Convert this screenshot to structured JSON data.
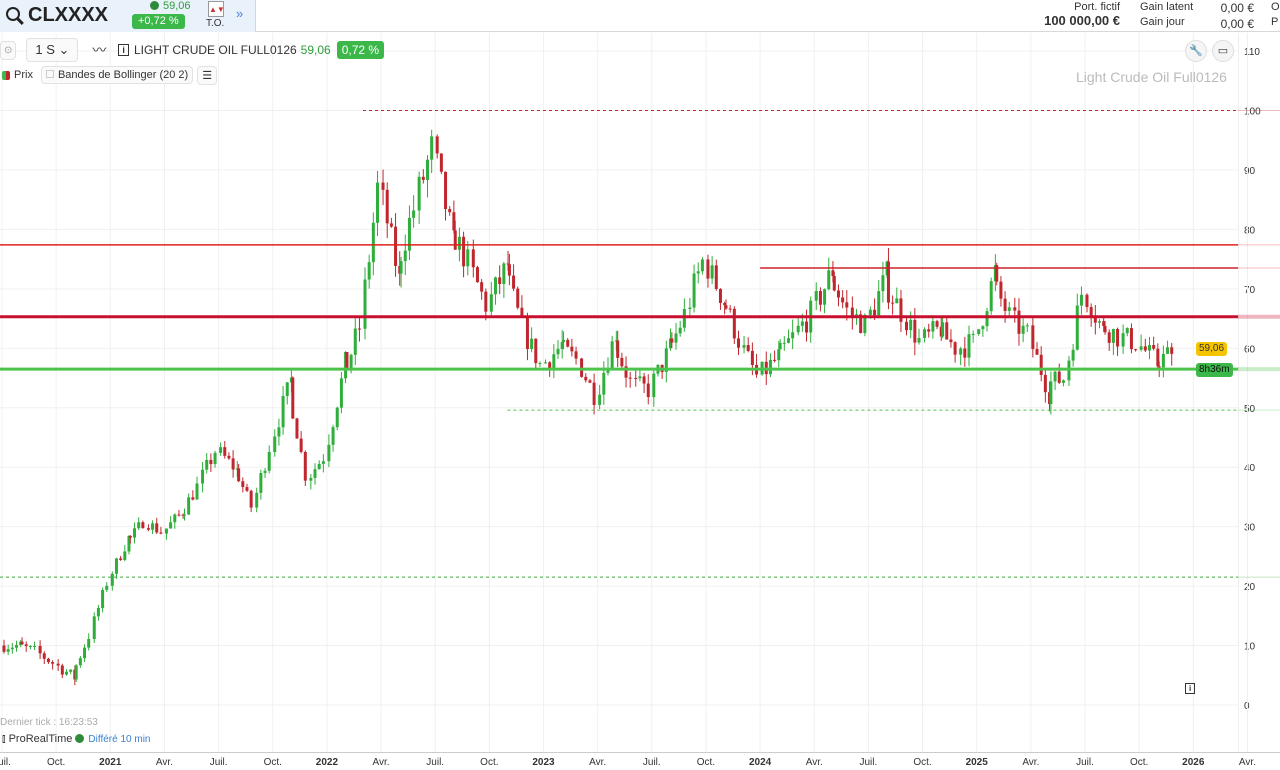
{
  "header": {
    "symbol": "CLXXXX",
    "price": "59,06",
    "change": "+0,72 %",
    "to_label": "T.O.",
    "portfolio_label": "Port. fictif",
    "portfolio_value": "100 000,00 €",
    "gain_latent_label": "Gain latent",
    "gain_latent": "0,00 €",
    "gain_jour_label": "Gain jour",
    "gain_jour": "0,00 €",
    "cut1": "O",
    "cut2": "P"
  },
  "toolbar": {
    "period": "1 S",
    "instrument": "LIGHT CRUDE OIL FULL0126",
    "price": "59,06",
    "change": "0,72 %"
  },
  "legend": {
    "price": "Prix",
    "indicator": "Bandes de Bollinger (20 2)"
  },
  "watermark": "Light Crude Oil Full0126",
  "footer": {
    "last_tick": "Dernier tick : 16:23:53",
    "brand": "ProRealTime",
    "delay": "Différé 10 min"
  },
  "price_tag": "59,06",
  "timer_tag": "8h36m",
  "colors": {
    "up": "#2fae3c",
    "down": "#c0262d",
    "accent_green": "#3cb84a",
    "tag_yellow": "#f5c400"
  },
  "chart_data": {
    "type": "candlestick",
    "timeframe": "weekly",
    "ylim": [
      0,
      110
    ],
    "yticks": [
      0,
      10,
      20,
      30,
      40,
      50,
      60,
      70,
      80,
      90,
      100,
      110
    ],
    "xticks": [
      "Juil.",
      "Oct.",
      "2021",
      "Avr.",
      "Juil.",
      "Oct.",
      "2022",
      "Avr.",
      "Juil.",
      "Oct.",
      "2023",
      "Avr.",
      "Juil.",
      "Oct.",
      "2024",
      "Avr.",
      "Juil.",
      "Oct.",
      "2025",
      "Avr.",
      "Juil.",
      "Oct.",
      "2026",
      "Avr."
    ],
    "grid": true,
    "monthly_close": [
      [
        "2020-07",
        10
      ],
      [
        "2020-08",
        9
      ],
      [
        "2020-09",
        7
      ],
      [
        "2020-10",
        5
      ],
      [
        "2020-11",
        12
      ],
      [
        "2020-12",
        21
      ],
      [
        "2021-01",
        27
      ],
      [
        "2021-02",
        31
      ],
      [
        "2021-03",
        29
      ],
      [
        "2021-04",
        32
      ],
      [
        "2021-05",
        37
      ],
      [
        "2021-06",
        43
      ],
      [
        "2021-07",
        40
      ],
      [
        "2021-08",
        33
      ],
      [
        "2021-09",
        44
      ],
      [
        "2021-10",
        53
      ],
      [
        "2021-11",
        38
      ],
      [
        "2021-12",
        42
      ],
      [
        "2022-01",
        55
      ],
      [
        "2022-02",
        64
      ],
      [
        "2022-03",
        88
      ],
      [
        "2022-04",
        74
      ],
      [
        "2022-05",
        84
      ],
      [
        "2022-06",
        94
      ],
      [
        "2022-07",
        80
      ],
      [
        "2022-08",
        74
      ],
      [
        "2022-09",
        67
      ],
      [
        "2022-10",
        73
      ],
      [
        "2022-11",
        63
      ],
      [
        "2022-12",
        57
      ],
      [
        "2023-01",
        60
      ],
      [
        "2023-02",
        58
      ],
      [
        "2023-03",
        52
      ],
      [
        "2023-04",
        61
      ],
      [
        "2023-05",
        54
      ],
      [
        "2023-06",
        53
      ],
      [
        "2023-07",
        59
      ],
      [
        "2023-08",
        66
      ],
      [
        "2023-09",
        75
      ],
      [
        "2023-10",
        69
      ],
      [
        "2023-11",
        61
      ],
      [
        "2023-12",
        55
      ],
      [
        "2024-01",
        58
      ],
      [
        "2024-02",
        62
      ],
      [
        "2024-03",
        66
      ],
      [
        "2024-04",
        72
      ],
      [
        "2024-05",
        66
      ],
      [
        "2024-06",
        64
      ],
      [
        "2024-07",
        71
      ],
      [
        "2024-08",
        66
      ],
      [
        "2024-09",
        61
      ],
      [
        "2024-10",
        63
      ],
      [
        "2024-11",
        60
      ],
      [
        "2024-12",
        61
      ],
      [
        "2025-01",
        71
      ],
      [
        "2025-02",
        65
      ],
      [
        "2025-03",
        62
      ],
      [
        "2025-04",
        54
      ],
      [
        "2025-05",
        55
      ],
      [
        "2025-06",
        70
      ],
      [
        "2025-07",
        64
      ],
      [
        "2025-08",
        62
      ],
      [
        "2025-09",
        61
      ],
      [
        "2025-10",
        58
      ],
      [
        "2025-11",
        59
      ]
    ],
    "levels": [
      {
        "value": 100,
        "color": "#c0262d",
        "style": "dashed",
        "from": "2022-03"
      },
      {
        "value": 77.4,
        "color": "#e0201c",
        "style": "solid"
      },
      {
        "value": 73.5,
        "color": "#d0202a",
        "style": "solid",
        "from": "2024-01"
      },
      {
        "value": 65.3,
        "color": "#c8102e",
        "style": "thick"
      },
      {
        "value": 56.5,
        "color": "#4cc44c",
        "style": "thick"
      },
      {
        "value": 49.6,
        "color": "#4cc44c",
        "style": "dashed",
        "from": "2022-11"
      },
      {
        "value": 21.5,
        "color": "#3aa83a",
        "style": "dashed"
      }
    ],
    "last": 59.06
  }
}
